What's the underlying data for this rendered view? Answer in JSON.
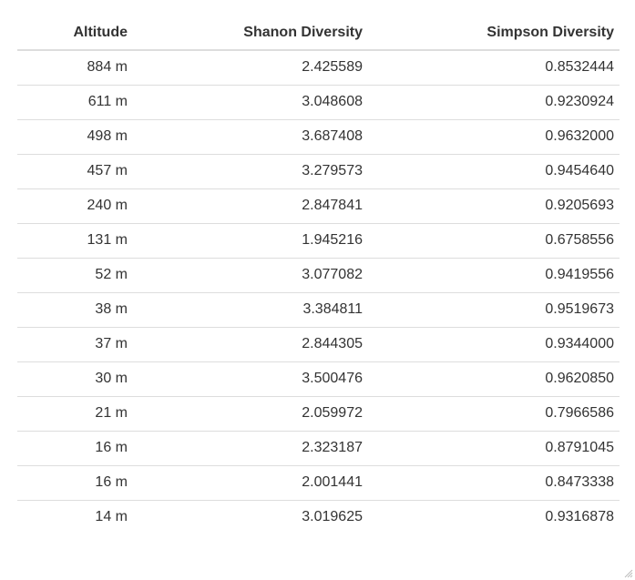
{
  "table": {
    "headers": {
      "altitude": "Altitude",
      "shannon": "Shanon Diversity",
      "simpson": "Simpson Diversity"
    },
    "rows": [
      {
        "altitude": "884 m",
        "shannon": "2.425589",
        "simpson": "0.8532444"
      },
      {
        "altitude": "611 m",
        "shannon": "3.048608",
        "simpson": "0.9230924"
      },
      {
        "altitude": "498 m",
        "shannon": "3.687408",
        "simpson": "0.9632000"
      },
      {
        "altitude": "457 m",
        "shannon": "3.279573",
        "simpson": "0.9454640"
      },
      {
        "altitude": "240 m",
        "shannon": "2.847841",
        "simpson": "0.9205693"
      },
      {
        "altitude": "131 m",
        "shannon": "1.945216",
        "simpson": "0.6758556"
      },
      {
        "altitude": "52 m",
        "shannon": "3.077082",
        "simpson": "0.9419556"
      },
      {
        "altitude": "38 m",
        "shannon": "3.384811",
        "simpson": "0.9519673"
      },
      {
        "altitude": "37 m",
        "shannon": "2.844305",
        "simpson": "0.9344000"
      },
      {
        "altitude": "30 m",
        "shannon": "3.500476",
        "simpson": "0.9620850"
      },
      {
        "altitude": "21 m",
        "shannon": "2.059972",
        "simpson": "0.7966586"
      },
      {
        "altitude": "16 m",
        "shannon": "2.323187",
        "simpson": "0.8791045"
      },
      {
        "altitude": "16 m",
        "shannon": "2.001441",
        "simpson": "0.8473338"
      },
      {
        "altitude": "14 m",
        "shannon": "3.019625",
        "simpson": "0.9316878"
      }
    ]
  },
  "colors": {
    "text": "#333333",
    "rule": "#dddddd",
    "background": "#ffffff"
  }
}
